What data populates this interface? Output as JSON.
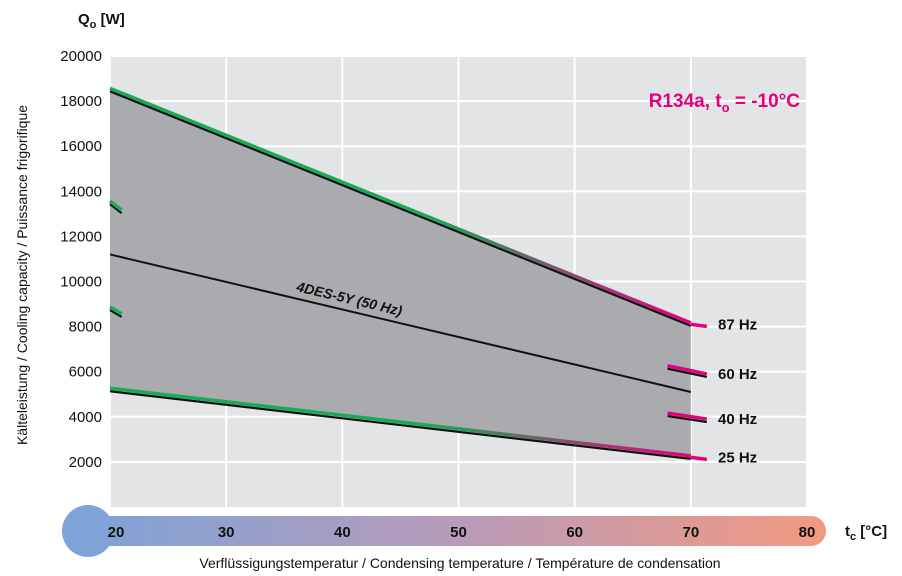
{
  "chart_data": {
    "type": "line",
    "y_axis_label_main": "Q",
    "y_axis_label_sub": "o",
    "y_axis_unit": "[W]",
    "y_label_rotated": "Kälteleistung / Cooling capacity / Puissance frigorifique",
    "x_axis_label_main": "t",
    "x_axis_label_sub": "c",
    "x_axis_unit": "[°C]",
    "x_label_bottom": "Verflüssigungstemperatur / Condensing temperature / Température de condensation",
    "annotation": {
      "prefix": "R134a, t",
      "sub": "o",
      "suffix": " = -10°C",
      "color": "#e5007d"
    },
    "xlim": [
      20,
      80
    ],
    "ylim": [
      0,
      20000
    ],
    "x_ticks": [
      20,
      30,
      40,
      50,
      60,
      70,
      80
    ],
    "y_ticks": [
      2000,
      4000,
      6000,
      8000,
      10000,
      12000,
      14000,
      16000,
      18000,
      20000
    ],
    "grid": true,
    "envelope_color": "#a9abae",
    "series": [
      {
        "name": "87 Hz",
        "x": [
          20,
          70
        ],
        "y": [
          18500,
          8100
        ],
        "style": "gradient",
        "label_y": 8100
      },
      {
        "name": "60 Hz",
        "x": [
          68,
          70
        ],
        "y": [
          6200,
          5900
        ],
        "style": "gradient-short",
        "label_y": 5900,
        "start_x": [
          20,
          21
        ],
        "start_y": [
          13500,
          13100
        ]
      },
      {
        "name": "40 Hz",
        "x": [
          68,
          70
        ],
        "y": [
          4100,
          3900
        ],
        "style": "gradient-short",
        "label_y": 3900,
        "start_x": [
          20,
          21
        ],
        "start_y": [
          8800,
          8500
        ]
      },
      {
        "name": "25 Hz",
        "x": [
          20,
          70
        ],
        "y": [
          5200,
          2200
        ],
        "style": "gradient",
        "label_y": 2200
      },
      {
        "name": "4DES-5Y (50 Hz)",
        "x": [
          20,
          70
        ],
        "y": [
          11200,
          5100
        ],
        "style": "black"
      }
    ],
    "envelope": {
      "x": [
        20,
        70,
        70,
        20
      ],
      "y": [
        18500,
        8100,
        2200,
        5200
      ]
    }
  }
}
